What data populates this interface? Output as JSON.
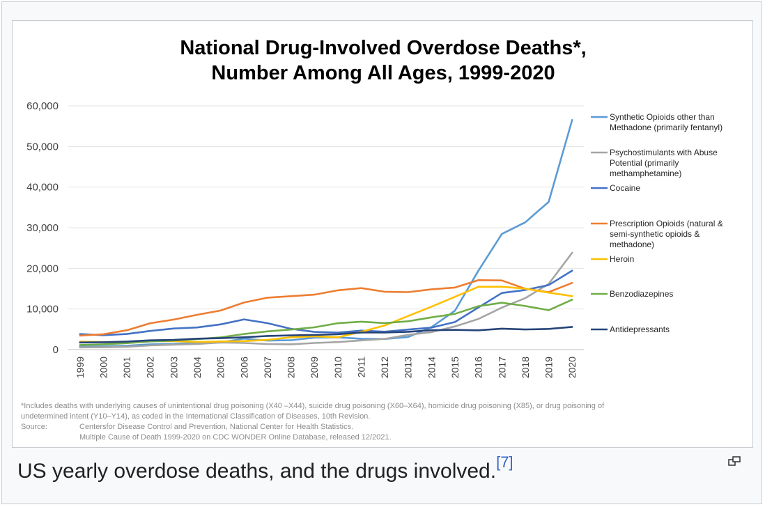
{
  "caption": {
    "text": "US yearly overdose deaths, and the drugs involved.",
    "ref": "[7]"
  },
  "magnify_icon": "enlarge-icon",
  "chart_data": {
    "type": "line",
    "title": "National Drug-Involved Overdose Deaths*,",
    "subtitle": "Number Among All Ages, 1999-2020",
    "xlabel": "",
    "ylabel": "",
    "ylim": [
      0,
      60000
    ],
    "yticks": [
      0,
      10000,
      20000,
      30000,
      40000,
      50000,
      60000
    ],
    "ytick_labels": [
      "0",
      "10,000",
      "20,000",
      "30,000",
      "40,000",
      "50,000",
      "60,000"
    ],
    "grid": true,
    "legend_position": "right",
    "x": [
      "1999",
      "2000",
      "2001",
      "2002",
      "2003",
      "2004",
      "2005",
      "2006",
      "2007",
      "2008",
      "2009",
      "2010",
      "2011",
      "2012",
      "2013",
      "2014",
      "2015",
      "2016",
      "2017",
      "2018",
      "2019",
      "2020"
    ],
    "series": [
      {
        "name": "Synthetic Opioids other than Methadone (primarily fentanyl)",
        "legend_lines": [
          "Synthetic Opioids other than",
          "Methadone (primarily fentanyl)"
        ],
        "color": "#5b9bd5",
        "values": [
          730,
          782,
          957,
          1295,
          1400,
          1664,
          1742,
          2707,
          2213,
          2306,
          2946,
          3007,
          2666,
          2628,
          3105,
          5544,
          9580,
          19413,
          28466,
          31335,
          36359,
          56516
        ]
      },
      {
        "name": "Psychostimulants with Abuse Potential (primarily methamphetamine)",
        "legend_lines": [
          "Psychostimulants with Abuse",
          "Potential (primarily",
          "methamphetamine)"
        ],
        "color": "#a5a5a5",
        "values": [
          547,
          578,
          705,
          1021,
          1216,
          1378,
          1745,
          1632,
          1373,
          1302,
          1632,
          1854,
          2266,
          2635,
          3627,
          4298,
          5716,
          7542,
          10333,
          12676,
          16167,
          23837
        ]
      },
      {
        "name": "Cocaine",
        "legend_lines": [
          "Cocaine"
        ],
        "color": "#4472c4",
        "values": [
          3822,
          3544,
          3833,
          4599,
          5199,
          5443,
          6208,
          7448,
          6512,
          5129,
          4350,
          4183,
          4681,
          4404,
          4944,
          5415,
          6784,
          10375,
          13942,
          14666,
          15883,
          19447
        ]
      },
      {
        "name": "Prescription Opioids (natural & semi-synthetic opioids & methadone)",
        "legend_lines": [
          "Prescription Opioids (natural &",
          "semi-synthetic opioids &",
          "methadone)"
        ],
        "color": "#ed7d31",
        "values": [
          3442,
          3785,
          4770,
          6489,
          7395,
          8577,
          9612,
          11589,
          12796,
          13149,
          13523,
          14583,
          15140,
          14240,
          14145,
          14838,
          15281,
          17087,
          17029,
          14975,
          14139,
          16416
        ]
      },
      {
        "name": "Heroin",
        "legend_lines": [
          "Heroin"
        ],
        "color": "#ffc000",
        "values": [
          1960,
          1842,
          1779,
          2089,
          2080,
          1878,
          2009,
          2088,
          2399,
          3041,
          3278,
          3036,
          4397,
          5925,
          8257,
          10574,
          12989,
          15469,
          15482,
          14996,
          14019,
          13165
        ]
      },
      {
        "name": "Benzodiazepines",
        "legend_lines": [
          "Benzodiazepines"
        ],
        "color": "#70ad47",
        "values": [
          1135,
          1298,
          1594,
          2004,
          2248,
          2586,
          3018,
          3833,
          4500,
          4938,
          5494,
          6497,
          6872,
          6524,
          6973,
          7945,
          8791,
          10684,
          11537,
          10724,
          9711,
          12290
        ]
      },
      {
        "name": "Antidepressants",
        "legend_lines": [
          "Antidepressants"
        ],
        "color": "#264478",
        "values": [
          1749,
          1810,
          1980,
          2286,
          2401,
          2691,
          2820,
          3034,
          3358,
          3497,
          3613,
          3794,
          4224,
          4205,
          4397,
          4791,
          4844,
          4747,
          5156,
          4956,
          5085,
          5597
        ]
      }
    ],
    "footnote": {
      "line1": "*Includes deaths with underlying causes of unintentional drug poisoning (X40 –X44), suicide drug poisoning (X60–X64), homicide drug poisoning (X85), or drug poisoning of",
      "line2": "undetermined intent (Y10–Y14), as coded in the International Classification of Diseases, 10th Revision.",
      "source_label": "Source:",
      "source_line1": "Centersfor Disease Control and Prevention, National Center for Health Statistics.",
      "source_line2": "Multiple Cause of Death 1999-2020 on CDC WONDER Online Database, released 12/2021."
    }
  }
}
